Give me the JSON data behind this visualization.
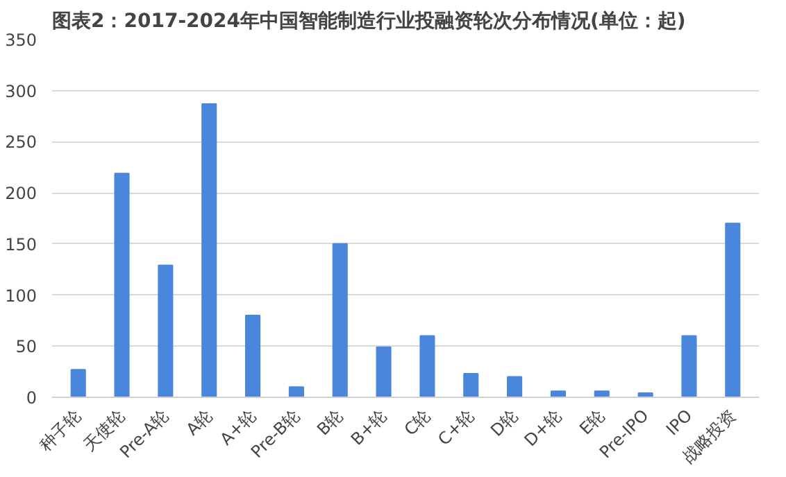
{
  "chart_data": {
    "type": "bar",
    "title": "图表2：2017-2024年中国智能制造行业投融资轮次分布情况(单位：起)",
    "categories": [
      "种子轮",
      "天使轮",
      "Pre-A轮",
      "A轮",
      "A+轮",
      "Pre-B轮",
      "B轮",
      "B+轮",
      "C轮",
      "C+轮",
      "D轮",
      "D+轮",
      "E轮",
      "Pre-IPO",
      "IPO",
      "战略投资"
    ],
    "values": [
      27,
      219,
      129,
      287,
      80,
      10,
      150,
      49,
      60,
      23,
      20,
      6,
      6,
      4,
      60,
      170
    ],
    "color": "#4a86dc",
    "ylim": [
      0,
      350
    ],
    "yticks": [
      0,
      50,
      100,
      150,
      200,
      250,
      300,
      350
    ],
    "grid": "y"
  }
}
